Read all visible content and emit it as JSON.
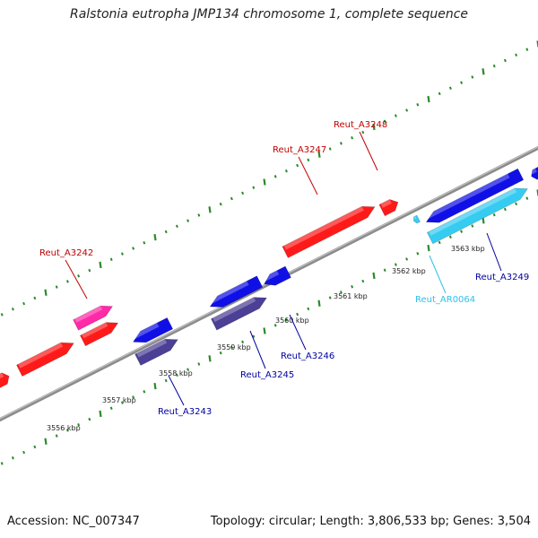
{
  "title": "Ralstonia eutropha JMP134 chromosome 1, complete sequence",
  "footer": {
    "accession": "Accession: NC_007347",
    "topology": "Topology: circular; Length: 3,806,533 bp; Genes: 3,504"
  },
  "colors": {
    "forward_gene": "#ff1a1a",
    "forward_other": "#ff2aa8",
    "reverse_gene": "#1010e6",
    "reverse_other": "#4b3f96",
    "rna": "#36ccf2",
    "forward_label": "#c00000",
    "reverse_label": "#0000a0",
    "rna_label": "#30c0e8",
    "tick": "#2a8a2a",
    "backbone": "#8c8c8c"
  },
  "ticks": [
    {
      "label": "3556 kbp"
    },
    {
      "label": "3557 kbp"
    },
    {
      "label": "3558 kbp"
    },
    {
      "label": "3559 kbp"
    },
    {
      "label": "3560 kbp"
    },
    {
      "label": "3561 kbp"
    },
    {
      "label": "3562 kbp"
    },
    {
      "label": "3563 kbp"
    }
  ],
  "gene_labels": [
    {
      "text": "Reut_A3242",
      "strand": "forward"
    },
    {
      "text": "Reut_A3247",
      "strand": "forward"
    },
    {
      "text": "Reut_A3248",
      "strand": "forward"
    },
    {
      "text": "Reut_A3243",
      "strand": "reverse"
    },
    {
      "text": "Reut_A3245",
      "strand": "reverse"
    },
    {
      "text": "Reut_A3246",
      "strand": "reverse"
    },
    {
      "text": "Reut_AR0064",
      "strand": "rna"
    },
    {
      "text": "Reut_A3249",
      "strand": "reverse"
    }
  ]
}
